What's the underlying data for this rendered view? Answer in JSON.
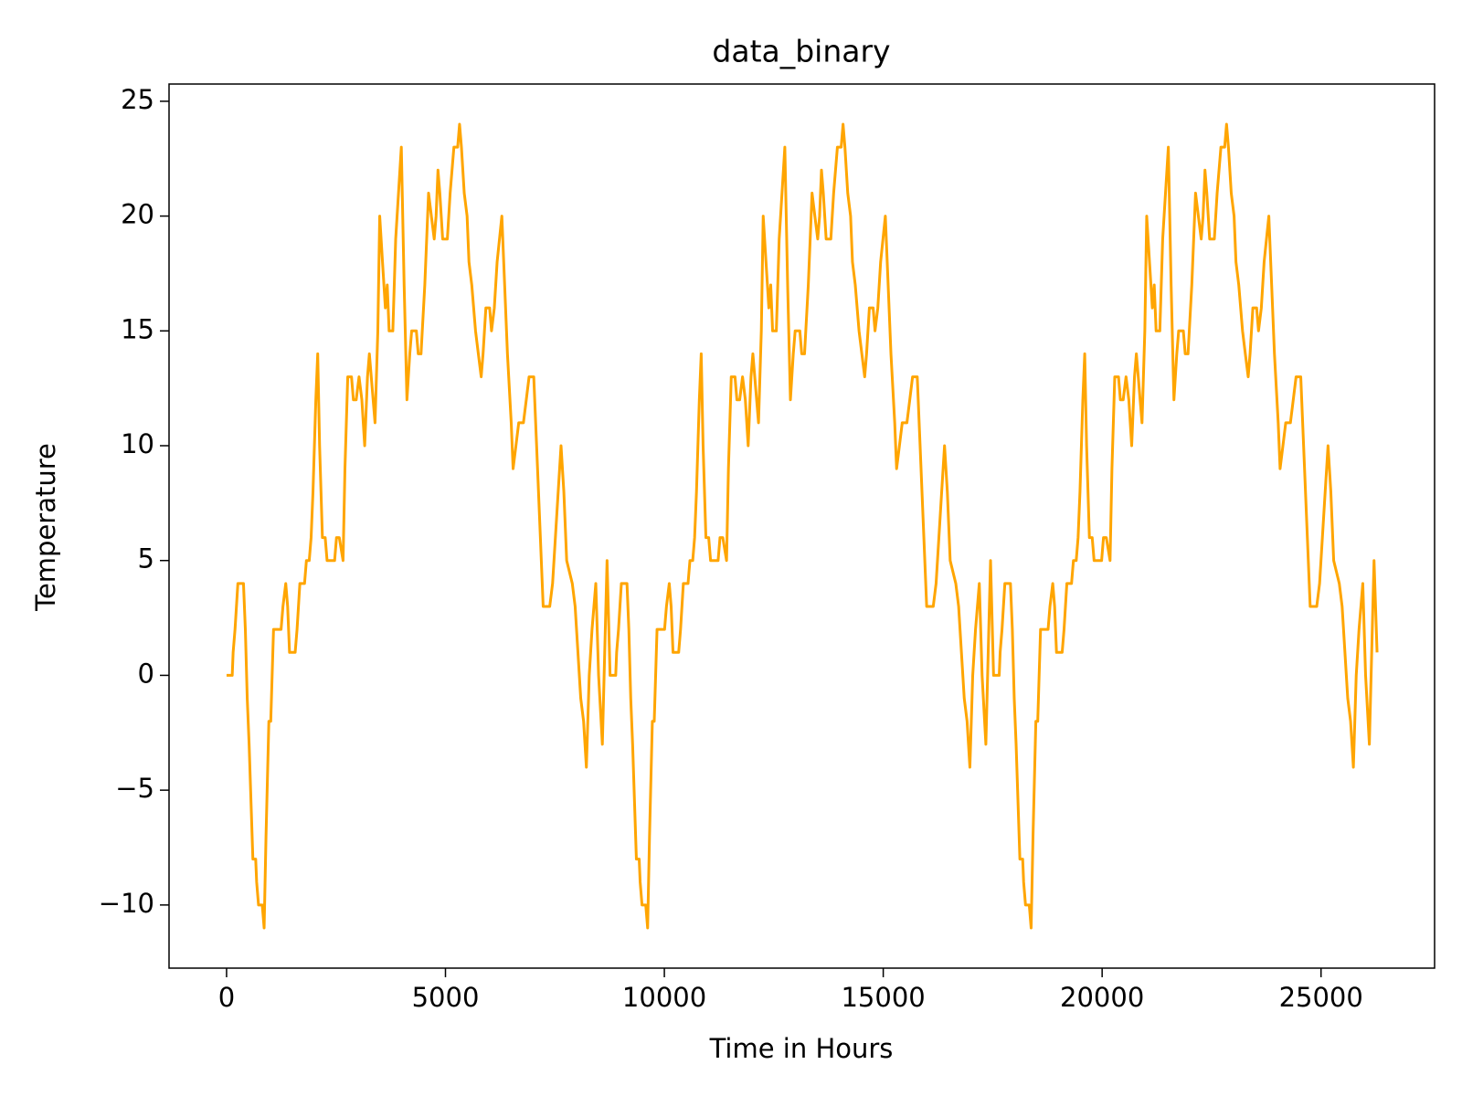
{
  "chart_data": {
    "type": "line",
    "title": "data_binary",
    "x_label": "Time in Hours",
    "y_label": "Temperature",
    "xlim": [
      -1314,
      27594
    ],
    "ylim": [
      -12.75,
      25.75
    ],
    "xticks": [
      0,
      5000,
      10000,
      15000,
      20000,
      25000
    ],
    "yticks": [
      {
        "value": -10,
        "label": "−10"
      },
      {
        "value": -5,
        "label": "−5"
      },
      0,
      5,
      10,
      15,
      20,
      25
    ],
    "grid": false,
    "x": [
      0,
      129,
      150,
      193,
      258,
      386,
      429,
      472,
      515,
      601,
      665,
      687,
      730,
      815,
      858,
      901,
      966,
      1009,
      1073,
      1245,
      1288,
      1352,
      1395,
      1438,
      1567,
      1610,
      1674,
      1781,
      1824,
      1888,
      1931,
      1974,
      2039,
      2082,
      2125,
      2189,
      2253,
      2296,
      2468,
      2511,
      2575,
      2661,
      2704,
      2768,
      2854,
      2897,
      2961,
      3026,
      3090,
      3155,
      3219,
      3262,
      3348,
      3391,
      3455,
      3498,
      3562,
      3627,
      3670,
      3713,
      3798,
      3863,
      3992,
      4056,
      4120,
      4185,
      4228,
      4335,
      4378,
      4442,
      4528,
      4614,
      4678,
      4743,
      4786,
      4829,
      4871,
      4936,
      5043,
      5107,
      5193,
      5279,
      5322,
      5365,
      5429,
      5494,
      5537,
      5601,
      5687,
      5751,
      5816,
      5859,
      5923,
      6009,
      6052,
      6116,
      6180,
      6288,
      6352,
      6416,
      6502,
      6545,
      6610,
      6674,
      6781,
      6846,
      6910,
      7017,
      7082,
      7168,
      7232,
      7382,
      7447,
      7511,
      7575,
      7640,
      7704,
      7769,
      7897,
      7962,
      8026,
      8090,
      8155,
      8219,
      8284,
      8348,
      8434,
      8498,
      8584,
      8691,
      8760,
      8889,
      8910,
      8953,
      9018,
      9146,
      9189,
      9232,
      9275,
      9361,
      9425,
      9447,
      9490,
      9575,
      9618,
      9661,
      9726,
      9769,
      9833,
      10005,
      10048,
      10112,
      10155,
      10198,
      10327,
      10370,
      10434,
      10541,
      10584,
      10648,
      10691,
      10734,
      10799,
      10842,
      10885,
      10949,
      11013,
      11056,
      11228,
      11271,
      11335,
      11421,
      11464,
      11528,
      11614,
      11657,
      11721,
      11786,
      11850,
      11915,
      11979,
      12022,
      12108,
      12151,
      12215,
      12258,
      12322,
      12387,
      12430,
      12473,
      12558,
      12623,
      12752,
      12816,
      12880,
      12945,
      12988,
      13095,
      13138,
      13202,
      13288,
      13374,
      13438,
      13503,
      13546,
      13589,
      13631,
      13696,
      13803,
      13867,
      13953,
      14039,
      14082,
      14125,
      14189,
      14254,
      14297,
      14361,
      14447,
      14511,
      14576,
      14619,
      14683,
      14769,
      14812,
      14876,
      14940,
      15048,
      15112,
      15176,
      15262,
      15305,
      15370,
      15434,
      15541,
      15606,
      15670,
      15777,
      15842,
      15928,
      15992,
      16142,
      16207,
      16271,
      16335,
      16400,
      16464,
      16529,
      16657,
      16722,
      16786,
      16850,
      16915,
      16979,
      17044,
      17108,
      17194,
      17258,
      17344,
      17451,
      17520,
      17649,
      17670,
      17713,
      17778,
      17906,
      17949,
      17992,
      18035,
      18121,
      18185,
      18207,
      18250,
      18335,
      18378,
      18421,
      18486,
      18529,
      18593,
      18765,
      18808,
      18872,
      18915,
      18958,
      19087,
      19130,
      19194,
      19301,
      19344,
      19408,
      19451,
      19494,
      19559,
      19602,
      19645,
      19709,
      19773,
      19816,
      19988,
      20031,
      20095,
      20181,
      20224,
      20288,
      20374,
      20417,
      20481,
      20546,
      20610,
      20675,
      20739,
      20782,
      20868,
      20911,
      20975,
      21018,
      21082,
      21147,
      21190,
      21233,
      21318,
      21383,
      21512,
      21576,
      21640,
      21705,
      21748,
      21855,
      21898,
      21962,
      22048,
      22134,
      22198,
      22263,
      22306,
      22349,
      22391,
      22456,
      22563,
      22627,
      22713,
      22799,
      22842,
      22885,
      22949,
      23014,
      23057,
      23121,
      23207,
      23271,
      23336,
      23379,
      23443,
      23529,
      23572,
      23636,
      23700,
      23808,
      23872,
      23936,
      24022,
      24065,
      24130,
      24194,
      24301,
      24366,
      24430,
      24537,
      24602,
      24688,
      24752,
      24902,
      24967,
      25031,
      25095,
      25160,
      25224,
      25289,
      25417,
      25482,
      25546,
      25610,
      25675,
      25739,
      25804,
      25868,
      25954,
      26018,
      26104,
      26211,
      26280
    ],
    "series": [
      {
        "color": "#ffa500",
        "values": [
          0,
          0,
          1,
          2,
          4,
          4,
          2,
          -1,
          -3,
          -8,
          -8,
          -9,
          -10,
          -10,
          -11,
          -7,
          -2,
          -2,
          2,
          2,
          3,
          4,
          3,
          1,
          1,
          2,
          4,
          4,
          5,
          5,
          6,
          8,
          12,
          14,
          10,
          6,
          6,
          5,
          5,
          6,
          6,
          5,
          9,
          13,
          13,
          12,
          12,
          13,
          12,
          10,
          13,
          14,
          12,
          11,
          15,
          20,
          18,
          16,
          17,
          15,
          15,
          19,
          23,
          17,
          12,
          14,
          15,
          15,
          14,
          14,
          17,
          21,
          20,
          19,
          20,
          22,
          21,
          19,
          19,
          21,
          23,
          23,
          24,
          23,
          21,
          20,
          18,
          17,
          15,
          14,
          13,
          14,
          16,
          16,
          15,
          16,
          18,
          20,
          17,
          14,
          11,
          9,
          10,
          11,
          11,
          12,
          13,
          13,
          10,
          6,
          3,
          3,
          4,
          6,
          8,
          10,
          8,
          5,
          4,
          3,
          1,
          -1,
          -2,
          -4,
          0,
          2,
          4,
          0,
          -3,
          5,
          0,
          0,
          1,
          2,
          4,
          4,
          2,
          -1,
          -3,
          -8,
          -8,
          -9,
          -10,
          -10,
          -11,
          -7,
          -2,
          -2,
          2,
          2,
          3,
          4,
          3,
          1,
          1,
          2,
          4,
          4,
          5,
          5,
          6,
          8,
          12,
          14,
          10,
          6,
          6,
          5,
          5,
          6,
          6,
          5,
          9,
          13,
          13,
          12,
          12,
          13,
          12,
          10,
          13,
          14,
          12,
          11,
          15,
          20,
          18,
          16,
          17,
          15,
          15,
          19,
          23,
          17,
          12,
          14,
          15,
          15,
          14,
          14,
          17,
          21,
          20,
          19,
          20,
          22,
          21,
          19,
          19,
          21,
          23,
          23,
          24,
          23,
          21,
          20,
          18,
          17,
          15,
          14,
          13,
          14,
          16,
          16,
          15,
          16,
          18,
          20,
          17,
          14,
          11,
          9,
          10,
          11,
          11,
          12,
          13,
          13,
          10,
          6,
          3,
          3,
          4,
          6,
          8,
          10,
          8,
          5,
          4,
          3,
          1,
          -1,
          -2,
          -4,
          0,
          2,
          4,
          0,
          -3,
          5,
          0,
          0,
          1,
          2,
          4,
          4,
          2,
          -1,
          -3,
          -8,
          -8,
          -9,
          -10,
          -10,
          -11,
          -7,
          -2,
          -2,
          2,
          2,
          3,
          4,
          3,
          1,
          1,
          2,
          4,
          4,
          5,
          5,
          6,
          8,
          12,
          14,
          10,
          6,
          6,
          5,
          5,
          6,
          6,
          5,
          9,
          13,
          13,
          12,
          12,
          13,
          12,
          10,
          13,
          14,
          12,
          11,
          15,
          20,
          18,
          16,
          17,
          15,
          15,
          19,
          23,
          17,
          12,
          14,
          15,
          15,
          14,
          14,
          17,
          21,
          20,
          19,
          20,
          22,
          21,
          19,
          19,
          21,
          23,
          23,
          24,
          23,
          21,
          20,
          18,
          17,
          15,
          14,
          13,
          14,
          16,
          16,
          15,
          16,
          18,
          20,
          17,
          14,
          11,
          9,
          10,
          11,
          11,
          12,
          13,
          13,
          10,
          6,
          3,
          3,
          4,
          6,
          8,
          10,
          8,
          5,
          4,
          3,
          1,
          -1,
          -2,
          -4,
          0,
          2,
          4,
          0,
          -3,
          5,
          1
        ]
      }
    ]
  }
}
